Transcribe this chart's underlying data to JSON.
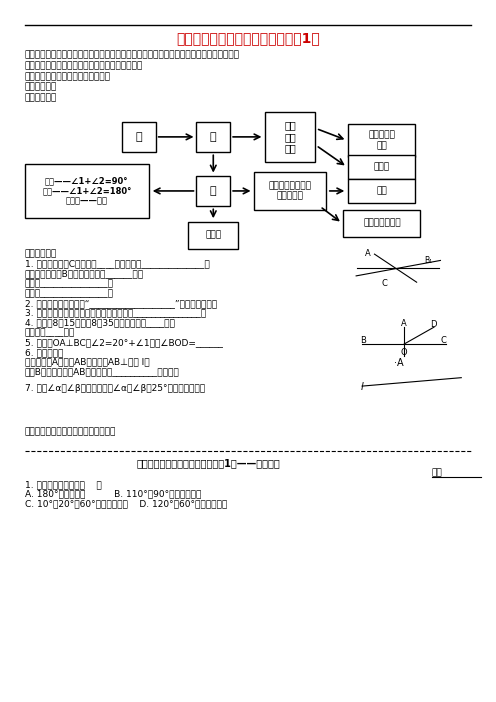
{
  "title": "《平面图形的认识》小结与思考（1）",
  "title_color": "#cc0000",
  "bg_color": "#ffffff",
  "obj": "【学习目标】复习线段、直线、射线、线段的中点、角、余角、补角、对顶角的有关概念。",
  "key": "【学习重点】有关基础理论在生活实际中的应用。",
  "diff": "【学习难点】线段、角的有关计算。",
  "proc": "【学习过程】",
  "know": "『知识梳理』",
  "ex_header": "『例题讲评』",
  "summary": "『课堂小结』这节课我们复习了什么？",
  "bottom_title": "《平面图形的认识》小结与思考（1）——随堂练习",
  "node_dian": "点",
  "node_xian": "线",
  "node_xian_t": "线段\n射线\n直线",
  "node_liang": "两点之间的\n距离",
  "node_ping": "平行线",
  "node_jiao": "角",
  "node_jiao_t": "锐角、直角、锨角\n平角、周角",
  "node_chui": "垂直",
  "node_fang": "方位角",
  "node_dao": "点到直线的距离",
  "node_yubu": "余角——∠1+∠2=90°\n补角——∠1+∠2=180°\n对顶角——相等",
  "ex1": "1. 如图，经过点C的直线有____条，它们是______________，",
  "ex1b": "可以表示的以点B为端点的射线有______条，",
  "ex1c": "它们是_______________；",
  "ex1d": "有线段_______________。",
  "ex2": "2. 整队时，我们利用了“___________________”这一数学原理。",
  "ex3": "3. 如果两个角是对顶角，那么这两个角一定_______________。",
  "ex4a": "4. 时钟从8点15分走到8点35分，分针转了____度，",
  "ex4b": "时针转了____度。",
  "ex5": "5. 如图，OA⊥BC，∠2=20°+∠1，则∠BOD=______",
  "ex6a": "6. 作图并填空",
  "ex6b": "如图，过点A画线段AB，使线段AB⊥直线 l，",
  "ex6c": "且点B为垂足，线段AB的长度就是__________的距离。",
  "ex7": "7. 已知∠α与∠β互为补角，且∠α比∠β大25°，求这两个角。",
  "bot1": "1. 下列叙述正确的是（    ）",
  "botA": "A. 180°的角是补角          B. 110°和90°的角互为补角",
  "botC": "C. 10°、20°、60°的角互为余角    D. 120°和60°的角互为补角"
}
